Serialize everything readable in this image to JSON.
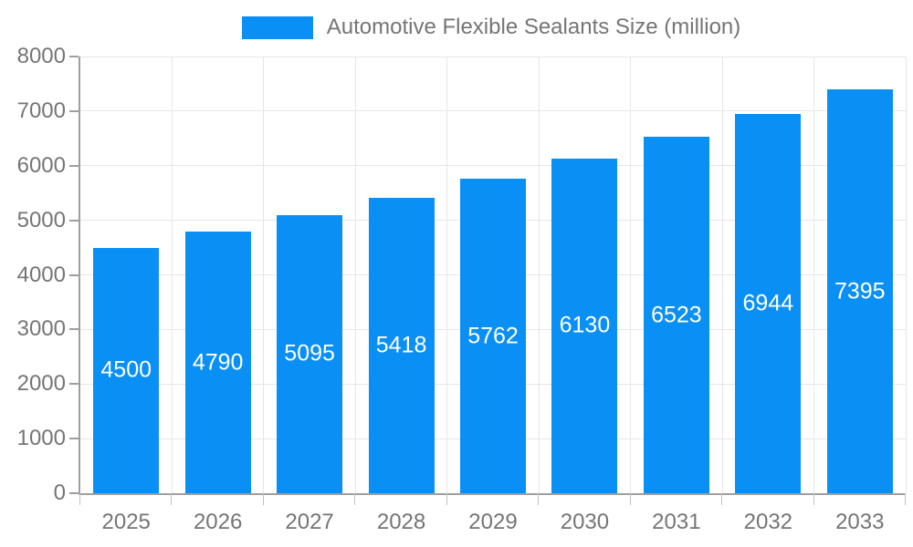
{
  "chart_data": {
    "type": "bar",
    "title": "Automotive Flexible Sealants Size (million)",
    "legend": {
      "position": "top",
      "entries": [
        {
          "label": "Automotive Flexible Sealants Size (million)",
          "color": "#0a90f4"
        }
      ]
    },
    "categories": [
      "2025",
      "2026",
      "2027",
      "2028",
      "2029",
      "2030",
      "2031",
      "2032",
      "2033"
    ],
    "series": [
      {
        "name": "Automotive Flexible Sealants Size (million)",
        "values": [
          4500,
          4790,
          5095,
          5418,
          5762,
          6130,
          6523,
          6944,
          7395
        ]
      }
    ],
    "value_labels": [
      "4500",
      "4790",
      "5095",
      "5418",
      "5762",
      "6130",
      "6523",
      "6944",
      "7395"
    ],
    "xlabel": "",
    "ylabel": "",
    "ylim": [
      0,
      8000
    ],
    "yticks": [
      0,
      1000,
      2000,
      3000,
      4000,
      5000,
      6000,
      7000,
      8000
    ],
    "grid": true,
    "colors": {
      "bar": "#0a90f4",
      "axis_text": "#757575",
      "grid_line": "#e6e6e6",
      "axis_line": "#9e9e9e",
      "value_label_text": "#ffffff",
      "background": "#ffffff"
    }
  }
}
